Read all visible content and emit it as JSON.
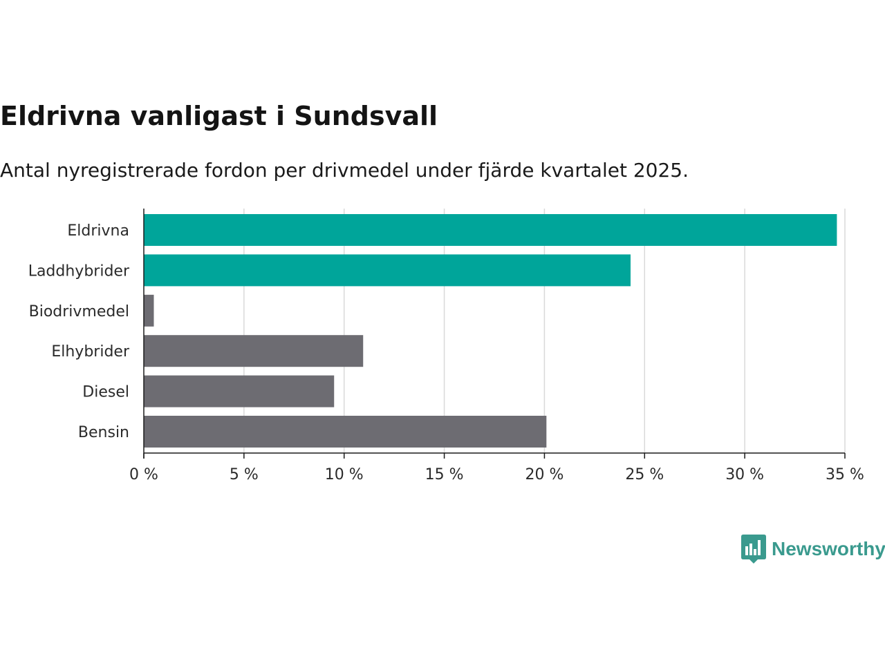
{
  "colors": {
    "accent": "#00a59a",
    "neutral": "#6d6c72",
    "grid": "#d9d9d9",
    "axis": "#1a1a1a",
    "brand": "#3a9a8e"
  },
  "brand": {
    "name": "Newsworthy",
    "icon": "bar-chart-speech-bubble-icon"
  },
  "chart_data": {
    "type": "bar",
    "orientation": "horizontal",
    "title": "Eldrivna vanligast i Sundsvall",
    "subtitle": "Antal nyregistrerade fordon per drivmedel under fjärde kvartalet 2025.",
    "xlabel": "",
    "ylabel": "",
    "categories": [
      "Eldrivna",
      "Laddhybrider",
      "Biodrivmedel",
      "Elhybrider",
      "Diesel",
      "Bensin"
    ],
    "values": [
      34.6,
      24.3,
      0.5,
      10.95,
      9.5,
      20.1
    ],
    "highlighted": [
      true,
      true,
      false,
      false,
      false,
      false
    ],
    "unit": "%",
    "xlim": [
      0,
      35
    ],
    "xticks": [
      0,
      5,
      10,
      15,
      20,
      25,
      30,
      35
    ],
    "xtick_labels": [
      "0 %",
      "5 %",
      "10 %",
      "15 %",
      "20 %",
      "25 %",
      "30 %",
      "35 %"
    ],
    "grid": true
  }
}
